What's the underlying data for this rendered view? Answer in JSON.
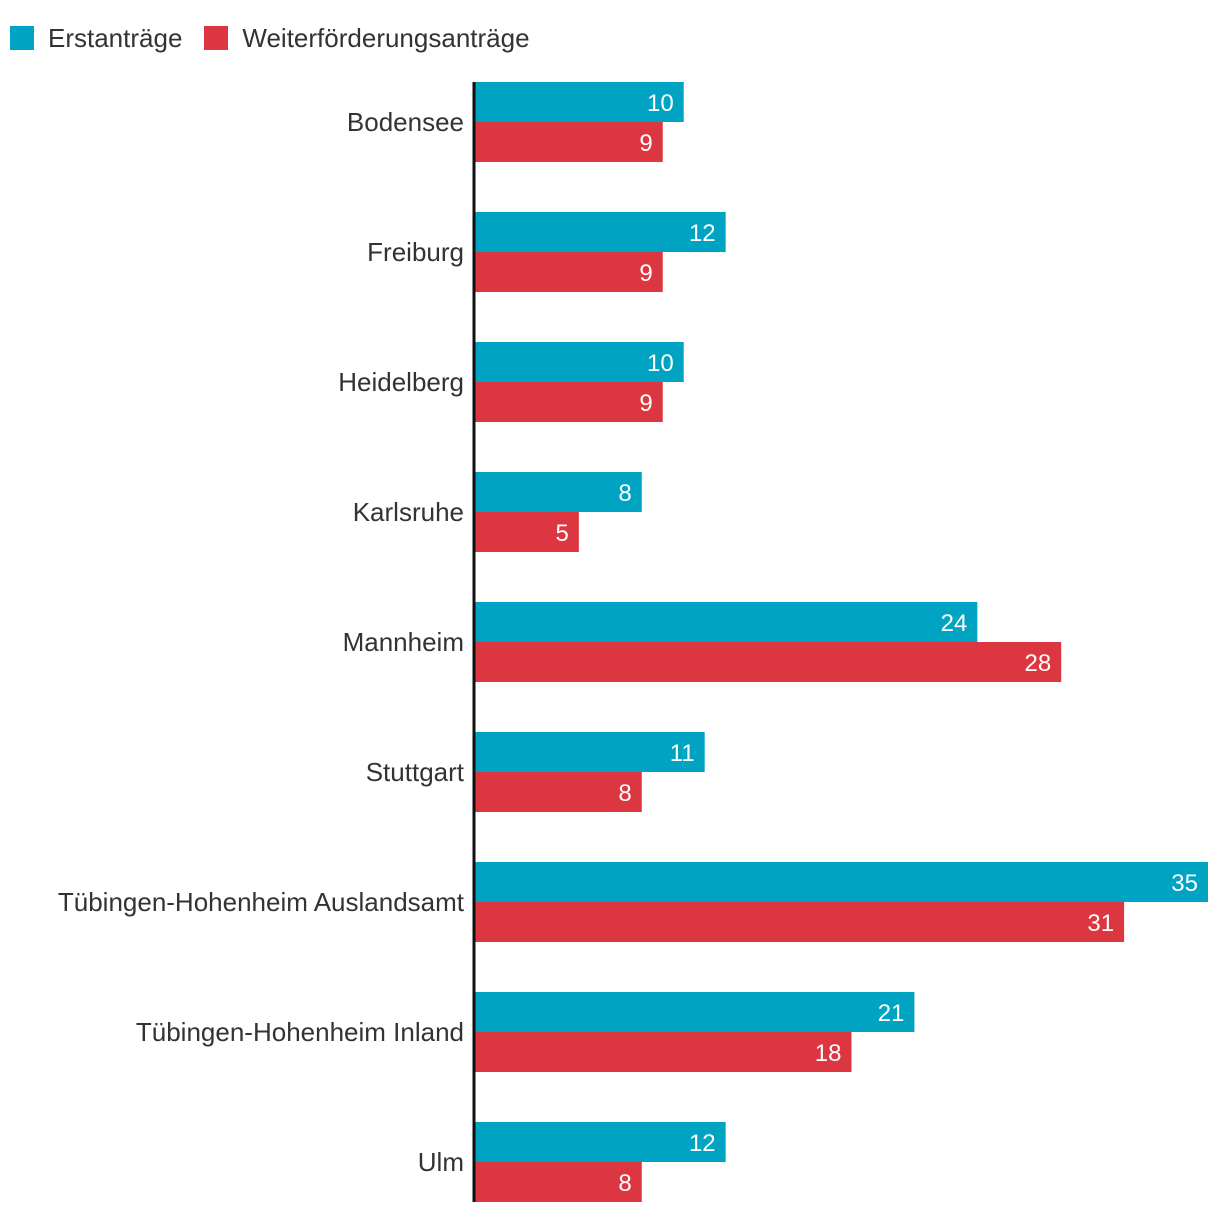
{
  "legend": {
    "series_1_label": "Erstanträge",
    "series_2_label": "Weiterförderungsanträge"
  },
  "colors": {
    "series_1": "#00a3c2",
    "series_2": "#dc3640",
    "axis": "#111111",
    "text": "#333333"
  },
  "chart_data": {
    "type": "bar",
    "orientation": "horizontal",
    "categories": [
      "Bodensee",
      "Freiburg",
      "Heidelberg",
      "Karlsruhe",
      "Mannheim",
      "Stuttgart",
      "Tübingen-Hohenheim Auslandsamt",
      "Tübingen-Hohenheim Inland",
      "Ulm"
    ],
    "series": [
      {
        "name": "Erstanträge",
        "values": [
          10,
          12,
          10,
          8,
          24,
          11,
          35,
          21,
          12
        ]
      },
      {
        "name": "Weiterförderungsanträge",
        "values": [
          9,
          9,
          9,
          5,
          28,
          8,
          31,
          18,
          8
        ]
      }
    ],
    "title": "",
    "xlabel": "",
    "ylabel": "",
    "xlim": [
      0,
      35
    ],
    "grid": false,
    "legend_position": "top-left",
    "data_labels": true
  }
}
